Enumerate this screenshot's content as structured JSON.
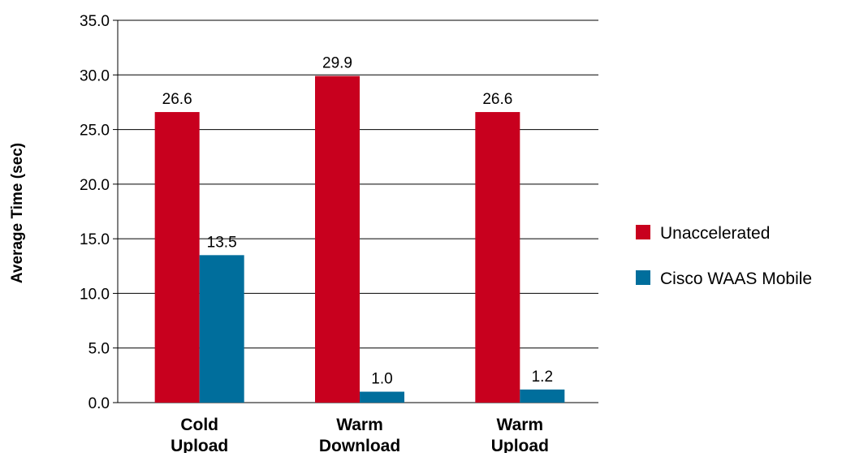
{
  "chart_data": {
    "type": "bar",
    "categories": [
      [
        "Cold",
        "Upload"
      ],
      [
        "Warm",
        "Download"
      ],
      [
        "Warm",
        "Upload"
      ]
    ],
    "series": [
      {
        "name": "Unaccelerated",
        "color": "#c8001e",
        "values": [
          26.6,
          29.9,
          26.6
        ]
      },
      {
        "name": "Cisco WAAS Mobile",
        "color": "#006e9c",
        "values": [
          13.5,
          1.0,
          1.2
        ]
      }
    ],
    "data_labels": [
      [
        "26.6",
        "29.9",
        "26.6"
      ],
      [
        "13.5",
        "1.0",
        "1.2"
      ]
    ],
    "ylabel": "Average Time (sec)",
    "xlabel": "",
    "ylim": [
      0,
      35
    ],
    "yticks": [
      0,
      5,
      10,
      15,
      20,
      25,
      30,
      35
    ],
    "ytick_labels": [
      "0.0",
      "5.0",
      "10.0",
      "15.0",
      "20.0",
      "25.0",
      "30.0",
      "35.0"
    ],
    "grid": true,
    "legend_position": "right"
  }
}
